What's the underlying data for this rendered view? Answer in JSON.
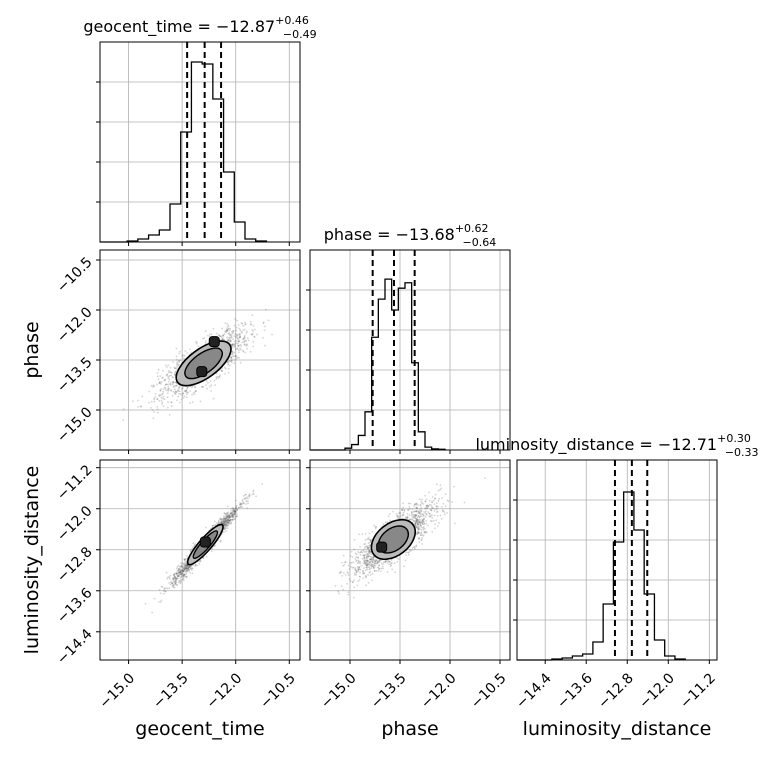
{
  "chart_data": {
    "type": "corner",
    "parameters": [
      "geocent_time",
      "phase",
      "luminosity_distance"
    ],
    "grid": true,
    "histograms": [
      {
        "param": "geocent_time",
        "title_prefix": "geocent_time = ",
        "median": "−12.87",
        "plus": "+0.46",
        "minus": "−0.49",
        "quantiles": [
          -13.36,
          -12.87,
          -12.41
        ],
        "bins": [
          -15.04,
          -14.74,
          -14.44,
          -14.14,
          -13.84,
          -13.54,
          -13.24,
          -12.94,
          -12.64,
          -12.34,
          -12.04,
          -11.74,
          -11.44,
          -11.14
        ],
        "counts": [
          0.5,
          1.5,
          3.5,
          6.0,
          19.0,
          55.0,
          90.0,
          89.0,
          71.5,
          35.0,
          10.0,
          1.5,
          0.5
        ],
        "xlim": [
          -15.8,
          -10.2
        ],
        "ymax": 100
      },
      {
        "param": "phase",
        "title_prefix": "phase = ",
        "median": "−13.68",
        "plus": "+0.62",
        "minus": "−0.64",
        "quantiles": [
          -14.32,
          -13.68,
          -13.06
        ],
        "bins": [
          -15.15,
          -14.95,
          -14.75,
          -14.55,
          -14.35,
          -14.15,
          -13.95,
          -13.75,
          -13.55,
          -13.35,
          -13.15,
          -12.95,
          -12.75,
          -12.55,
          -12.35,
          -12.15
        ],
        "counts": [
          0.5,
          1.5,
          4.0,
          10.5,
          31.0,
          41.5,
          47.0,
          38.5,
          44.5,
          46.0,
          24.0,
          5.0,
          0.8,
          0.3,
          0.2
        ],
        "xlim": [
          -16.2,
          -10.2
        ],
        "ymax": 55
      },
      {
        "param": "luminosity_distance",
        "title_prefix": "luminosity_distance = ",
        "median": "−12.71",
        "plus": "+0.30",
        "minus": "−0.33",
        "quantiles": [
          -13.04,
          -12.71,
          -12.41
        ],
        "bins": [
          -14.27,
          -14.07,
          -13.87,
          -13.67,
          -13.47,
          -13.27,
          -13.07,
          -12.87,
          -12.67,
          -12.47,
          -12.27,
          -12.07,
          -11.87,
          -11.67
        ],
        "counts": [
          0.5,
          1.0,
          2.0,
          3.0,
          9.0,
          28.0,
          59.0,
          84.0,
          65.0,
          33.0,
          10.0,
          2.0,
          0.5
        ],
        "xlim": [
          -14.95,
          -11.05
        ],
        "ymax": 100
      }
    ],
    "scatter_panels": [
      {
        "x": "geocent_time",
        "y": "phase",
        "center": [
          -12.9,
          -13.6
        ],
        "slope": 0.78,
        "spread_major": 0.75,
        "spread_minor": 0.25,
        "peaks": [
          [
            -12.6,
            -12.95
          ],
          [
            -12.95,
            -13.85
          ]
        ]
      },
      {
        "x": "geocent_time",
        "y": "luminosity_distance",
        "center": [
          -12.85,
          -12.7
        ],
        "slope": 0.8,
        "spread_major": 0.6,
        "spread_minor": 0.07,
        "peaks": [
          [
            -12.85,
            -12.65
          ]
        ]
      },
      {
        "x": "phase",
        "y": "luminosity_distance",
        "center": [
          -13.7,
          -12.6
        ],
        "slope": 0.5,
        "spread_major": 0.7,
        "spread_minor": 0.18,
        "peaks": [
          [
            -14.05,
            -12.75
          ]
        ]
      }
    ],
    "ranges": {
      "geocent_time": [
        -15.8,
        -10.2
      ],
      "phase": [
        -16.2,
        -10.2
      ],
      "luminosity_distance": [
        -14.95,
        -11.05
      ]
    },
    "ticks": {
      "geocent_time": {
        "values": [
          -15.0,
          -13.5,
          -12.0,
          -10.5
        ],
        "labels": [
          "−15.0",
          "−13.5",
          "−12.0",
          "−10.5"
        ]
      },
      "phase": {
        "values": [
          -15.0,
          -13.5,
          -12.0,
          -10.5
        ],
        "labels": [
          "−15.0",
          "−13.5",
          "−12.0",
          "−10.5"
        ]
      },
      "luminosity_distance": {
        "values": [
          -14.4,
          -13.6,
          -12.8,
          -12.0,
          -11.2
        ],
        "labels": [
          "−14.4",
          "−13.6",
          "−12.8",
          "−12.0",
          "−11.2"
        ]
      }
    },
    "axis_labels": {
      "geocent_time": "geocent_time",
      "phase": "phase",
      "luminosity_distance": "luminosity_distance"
    },
    "colors": {
      "hist": "#000000",
      "contour": "#000000",
      "points": "#555555",
      "grid": "#b0b0b0"
    }
  }
}
